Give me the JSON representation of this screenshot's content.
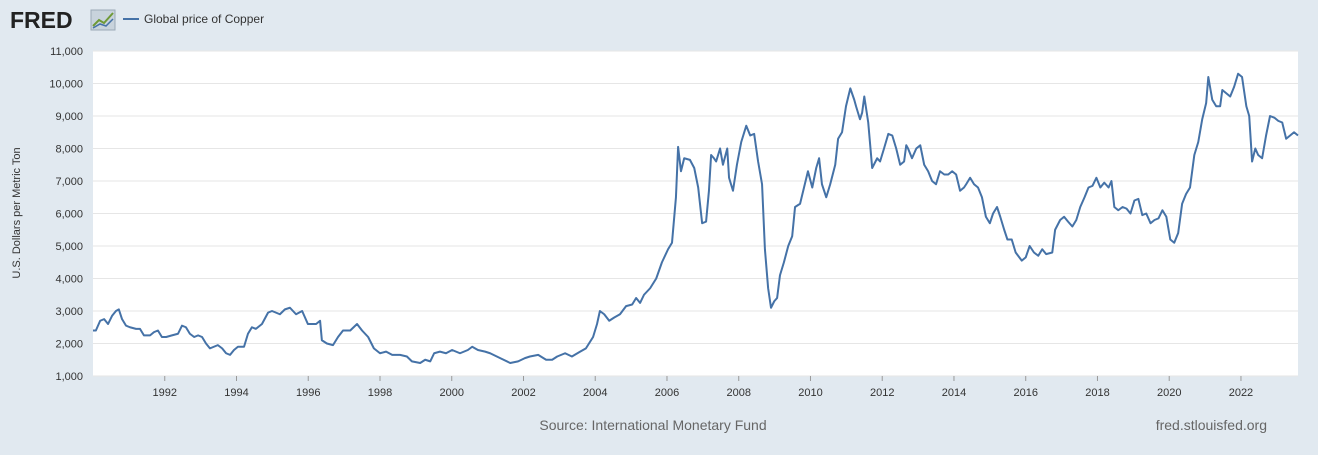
{
  "chart_data": {
    "type": "line",
    "logo": "FRED",
    "y_label": "U.S. Dollars per Metric Ton",
    "source": "Source: International Monetary Fund",
    "site": "fred.stlouisfed.org",
    "xlim": [
      1990,
      2023.59
    ],
    "ylim": [
      1000,
      11000
    ],
    "xticks": [
      1992,
      1994,
      1996,
      1998,
      2000,
      2002,
      2004,
      2006,
      2008,
      2010,
      2012,
      2014,
      2016,
      2018,
      2020,
      2022
    ],
    "yticks": [
      {
        "value": 1000,
        "label": "1,000"
      },
      {
        "value": 2000,
        "label": "2,000"
      },
      {
        "value": 3000,
        "label": "3,000"
      },
      {
        "value": 4000,
        "label": "4,000"
      },
      {
        "value": 5000,
        "label": "5,000"
      },
      {
        "value": 6000,
        "label": "6,000"
      },
      {
        "value": 7000,
        "label": "7,000"
      },
      {
        "value": 8000,
        "label": "8,000"
      },
      {
        "value": 9000,
        "label": "9,000"
      },
      {
        "value": 10000,
        "label": "10,000"
      },
      {
        "value": 11000,
        "label": "11,000"
      }
    ],
    "grid": true,
    "x": [
      1990.0,
      1990.08,
      1990.2,
      1990.31,
      1990.42,
      1990.53,
      1990.64,
      1990.72,
      1990.81,
      1990.92,
      1991.03,
      1991.2,
      1991.31,
      1991.42,
      1991.59,
      1991.7,
      1991.81,
      1991.92,
      1992.04,
      1992.2,
      1992.37,
      1992.48,
      1992.59,
      1992.7,
      1992.82,
      1992.93,
      1993.04,
      1993.15,
      1993.26,
      1993.37,
      1993.48,
      1993.6,
      1993.71,
      1993.82,
      1993.93,
      1994.04,
      1994.21,
      1994.32,
      1994.43,
      1994.54,
      1994.71,
      1994.88,
      1994.99,
      1995.21,
      1995.35,
      1995.49,
      1995.66,
      1995.83,
      1995.99,
      1996.22,
      1996.33,
      1996.38,
      1996.52,
      1996.69,
      1996.83,
      1996.97,
      1997.17,
      1997.36,
      1997.5,
      1997.67,
      1997.83,
      1998.0,
      1998.17,
      1998.34,
      1998.56,
      1998.75,
      1998.89,
      1999.12,
      1999.26,
      1999.4,
      1999.51,
      1999.67,
      1999.84,
      2000.01,
      2000.23,
      2000.45,
      2000.57,
      2000.73,
      2000.93,
      2001.07,
      2001.35,
      2001.63,
      2001.85,
      2002.04,
      2002.18,
      2002.41,
      2002.63,
      2002.8,
      2002.94,
      2003.16,
      2003.35,
      2003.58,
      2003.74,
      2003.94,
      2004.05,
      2004.13,
      2004.25,
      2004.39,
      2004.53,
      2004.69,
      2004.86,
      2005.03,
      2005.14,
      2005.25,
      2005.36,
      2005.53,
      2005.7,
      2005.86,
      2006.03,
      2006.14,
      2006.25,
      2006.31,
      2006.39,
      2006.48,
      2006.64,
      2006.76,
      2006.87,
      2006.98,
      2007.09,
      2007.17,
      2007.23,
      2007.31,
      2007.37,
      2007.48,
      2007.56,
      2007.68,
      2007.73,
      2007.84,
      2007.95,
      2008.07,
      2008.21,
      2008.32,
      2008.43,
      2008.54,
      2008.65,
      2008.73,
      2008.82,
      2008.9,
      2008.99,
      2009.07,
      2009.15,
      2009.26,
      2009.38,
      2009.49,
      2009.57,
      2009.71,
      2009.82,
      2009.93,
      2010.05,
      2010.16,
      2010.24,
      2010.32,
      2010.44,
      2010.55,
      2010.69,
      2010.77,
      2010.88,
      2010.99,
      2011.11,
      2011.22,
      2011.27,
      2011.38,
      2011.44,
      2011.5,
      2011.61,
      2011.72,
      2011.86,
      2011.94,
      2012.05,
      2012.17,
      2012.28,
      2012.39,
      2012.5,
      2012.61,
      2012.67,
      2012.72,
      2012.83,
      2012.95,
      2013.06,
      2013.17,
      2013.28,
      2013.39,
      2013.5,
      2013.61,
      2013.73,
      2013.84,
      2013.95,
      2014.06,
      2014.17,
      2014.28,
      2014.34,
      2014.45,
      2014.56,
      2014.67,
      2014.78,
      2014.89,
      2015.0,
      2015.09,
      2015.2,
      2015.29,
      2015.4,
      2015.49,
      2015.61,
      2015.72,
      2015.89,
      2016.0,
      2016.11,
      2016.23,
      2016.35,
      2016.46,
      2016.57,
      2016.74,
      2016.82,
      2016.96,
      2017.07,
      2017.18,
      2017.3,
      2017.41,
      2017.52,
      2017.64,
      2017.75,
      2017.86,
      2017.97,
      2018.08,
      2018.19,
      2018.31,
      2018.39,
      2018.47,
      2018.58,
      2018.7,
      2018.81,
      2018.92,
      2019.03,
      2019.14,
      2019.25,
      2019.36,
      2019.48,
      2019.59,
      2019.7,
      2019.81,
      2019.92,
      2020.03,
      2020.14,
      2020.25,
      2020.36,
      2020.47,
      2020.58,
      2020.7,
      2020.81,
      2020.92,
      2021.03,
      2021.09,
      2021.2,
      2021.31,
      2021.42,
      2021.48,
      2021.59,
      2021.7,
      2021.81,
      2021.92,
      2022.03,
      2022.15,
      2022.23,
      2022.31,
      2022.4,
      2022.48,
      2022.59,
      2022.7,
      2022.81,
      2022.93,
      2023.04,
      2023.15,
      2023.26,
      2023.37,
      2023.48,
      2023.59
    ],
    "series": [
      {
        "name": "Global price of Copper",
        "color": "#4572a7",
        "values": [
          2400,
          2400,
          2700,
          2750,
          2600,
          2850,
          3000,
          3050,
          2750,
          2550,
          2500,
          2450,
          2450,
          2250,
          2250,
          2350,
          2400,
          2200,
          2200,
          2250,
          2300,
          2550,
          2500,
          2300,
          2200,
          2250,
          2200,
          2000,
          1850,
          1900,
          1950,
          1850,
          1700,
          1650,
          1800,
          1900,
          1900,
          2300,
          2500,
          2450,
          2600,
          2950,
          3000,
          2900,
          3050,
          3100,
          2900,
          3000,
          2600,
          2600,
          2700,
          2100,
          2000,
          1950,
          2200,
          2400,
          2400,
          2600,
          2400,
          2200,
          1850,
          1700,
          1750,
          1650,
          1650,
          1600,
          1450,
          1400,
          1500,
          1450,
          1700,
          1750,
          1700,
          1800,
          1700,
          1800,
          1900,
          1800,
          1750,
          1700,
          1550,
          1400,
          1450,
          1550,
          1600,
          1650,
          1500,
          1500,
          1600,
          1700,
          1600,
          1750,
          1850,
          2200,
          2600,
          3000,
          2900,
          2700,
          2800,
          2900,
          3150,
          3200,
          3400,
          3250,
          3500,
          3700,
          4000,
          4500,
          4900,
          5100,
          6500,
          8050,
          7300,
          7700,
          7650,
          7400,
          6800,
          5700,
          5750,
          6700,
          7800,
          7700,
          7600,
          8000,
          7500,
          8000,
          7100,
          6700,
          7500,
          8200,
          8700,
          8400,
          8450,
          7600,
          6900,
          4900,
          3700,
          3100,
          3300,
          3400,
          4100,
          4500,
          5000,
          5300,
          6200,
          6300,
          6800,
          7300,
          6800,
          7400,
          7700,
          6900,
          6500,
          6900,
          7500,
          8300,
          8500,
          9300,
          9850,
          9500,
          9300,
          8900,
          9100,
          9600,
          8800,
          7400,
          7700,
          7600,
          8000,
          8450,
          8400,
          8000,
          7500,
          7600,
          8100,
          8000,
          7700,
          8000,
          8100,
          7500,
          7300,
          7000,
          6900,
          7300,
          7200,
          7200,
          7300,
          7200,
          6700,
          6800,
          6900,
          7100,
          6900,
          6800,
          6500,
          5900,
          5700,
          6000,
          6200,
          5900,
          5500,
          5200,
          5200,
          4800,
          4550,
          4650,
          5000,
          4800,
          4700,
          4900,
          4750,
          4800,
          5500,
          5800,
          5900,
          5750,
          5600,
          5800,
          6200,
          6500,
          6800,
          6850,
          7100,
          6800,
          6950,
          6800,
          7000,
          6200,
          6100,
          6200,
          6150,
          6000,
          6400,
          6450,
          5950,
          6000,
          5700,
          5800,
          5850,
          6100,
          5900,
          5200,
          5100,
          5400,
          6300,
          6600,
          6800,
          7800,
          8200,
          8900,
          9400,
          10200,
          9500,
          9300,
          9300,
          9800,
          9700,
          9600,
          9900,
          10300,
          10200,
          9300,
          9000,
          7600,
          8000,
          7800,
          7700,
          8400,
          9000,
          8950,
          8850,
          8800,
          8300,
          8400,
          8500,
          8400
        ]
      }
    ]
  }
}
